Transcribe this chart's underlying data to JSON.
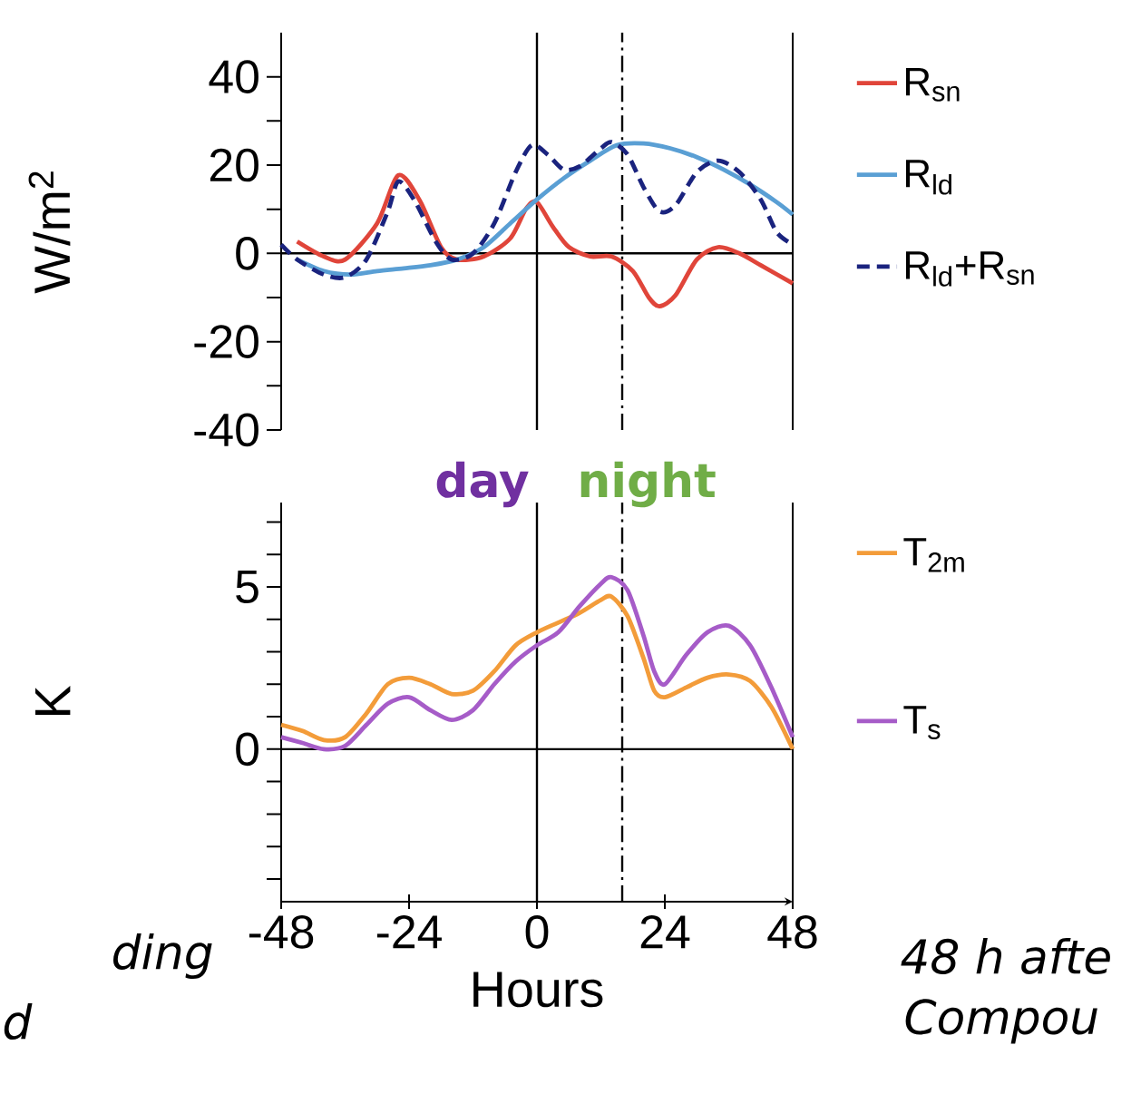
{
  "chart_data": [
    {
      "type": "line",
      "ylabel": "W/m$^{2}$",
      "xlim": [
        -48,
        48
      ],
      "ylim": [
        -40,
        50
      ],
      "yticks": [
        -40,
        {
          "value": -30,
          "label": null
        },
        -20,
        {
          "value": -10,
          "label": null
        },
        0,
        {
          "value": 10,
          "label": null
        },
        20,
        {
          "value": 30,
          "label": null
        },
        40
      ],
      "tick_labels": "y",
      "legend": "right",
      "annotations": [
        "day",
        "night"
      ],
      "ref_lines": [
        {
          "axis": "x",
          "value": 0,
          "color": "#000000",
          "line_style": "solid"
        },
        {
          "axis": "x",
          "value": 16,
          "color": "#000000",
          "line_style": "dashdot"
        },
        {
          "axis": "y",
          "value": 0,
          "color": "#000000",
          "line_style": "solid"
        }
      ],
      "series": [
        {
          "name": "R$_{sn}$",
          "color": "#e0453a",
          "line_style": "solid",
          "x": [
            -45,
            -40,
            -36,
            -30,
            -26,
            -22,
            -18,
            -15,
            -10,
            -5,
            -2,
            0,
            3,
            6,
            10,
            14,
            18,
            21,
            23,
            26,
            30,
            34,
            38,
            42,
            48
          ],
          "values": [
            2.7,
            -0.7,
            -1.4,
            6.8,
            17.7,
            12,
            1.4,
            -1.4,
            -0.7,
            3.4,
            10.2,
            11.6,
            6,
            1.4,
            -0.7,
            -0.7,
            -4,
            -10,
            -12,
            -9.5,
            -1.4,
            1.4,
            0,
            -2.7,
            -6.8
          ]
        },
        {
          "name": "R$_{ld}$",
          "color": "#5a9fd4",
          "line_style": "solid",
          "x": [
            -45,
            -40,
            -35,
            -30,
            -25,
            -20,
            -15,
            -10,
            -5,
            0,
            5,
            10,
            15,
            20,
            25,
            30,
            35,
            40,
            45,
            48
          ],
          "values": [
            -1.4,
            -4,
            -4.8,
            -4,
            -3.4,
            -2.7,
            -1.4,
            1.4,
            6.8,
            12.2,
            17,
            21,
            24.5,
            24.9,
            23.8,
            21.8,
            19,
            15.6,
            11.6,
            8.8
          ]
        },
        {
          "name": "R$_{ld}$+R$_{sn}$",
          "color": "#1a237e",
          "line_style": "dashed",
          "x": [
            -48,
            -45,
            -40,
            -36,
            -32,
            -28,
            -26,
            -23,
            -19,
            -16,
            -12,
            -8,
            -4,
            -1,
            2,
            5,
            8,
            12,
            14,
            17,
            20,
            23,
            26,
            30,
            34,
            38,
            42,
            45,
            48
          ],
          "values": [
            2,
            -1.4,
            -4.8,
            -5.4,
            -1.4,
            9.5,
            16.3,
            12,
            2.7,
            -1.4,
            0,
            6.8,
            18.4,
            24.5,
            22.4,
            19,
            19.7,
            23.8,
            25.2,
            22.4,
            15,
            9.5,
            10.9,
            18.4,
            21,
            18.4,
            12.2,
            4.8,
            2
          ]
        }
      ]
    },
    {
      "type": "line",
      "xlabel": "Hours",
      "ylabel": "K",
      "xlim": [
        -48,
        48
      ],
      "ylim": [
        -4.7,
        7.6
      ],
      "xticks": [
        -48,
        -24,
        0,
        24,
        48
      ],
      "yticks": [
        {
          "value": -4,
          "label": null
        },
        {
          "value": -3,
          "label": null
        },
        {
          "value": -2,
          "label": null
        },
        {
          "value": -1,
          "label": null
        },
        0,
        {
          "value": 1,
          "label": null
        },
        {
          "value": 2,
          "label": null
        },
        {
          "value": 3,
          "label": null
        },
        {
          "value": 4,
          "label": null
        },
        5,
        {
          "value": 6,
          "label": null
        },
        {
          "value": 7,
          "label": null
        }
      ],
      "legend": "right",
      "annotations": [
        "ding",
        "d",
        "48 h afte",
        "Compou"
      ],
      "ref_lines": [
        {
          "axis": "x",
          "value": 0,
          "color": "#000000",
          "line_style": "solid"
        },
        {
          "axis": "x",
          "value": 16,
          "color": "#000000",
          "line_style": "dashdot"
        },
        {
          "axis": "y",
          "value": 0,
          "color": "#000000",
          "line_style": "solid"
        }
      ],
      "series": [
        {
          "name": "T$_{2m}$",
          "color": "#f39c3a",
          "line_style": "solid",
          "x": [
            -48,
            -44,
            -40,
            -36,
            -32,
            -28,
            -24,
            -20,
            -16,
            -12,
            -8,
            -4,
            0,
            4,
            8,
            12,
            14,
            17,
            20,
            22,
            24,
            28,
            32,
            36,
            40,
            44,
            48
          ],
          "values": [
            0.75,
            0.56,
            0.28,
            0.37,
            1.1,
            2,
            2.2,
            2,
            1.7,
            1.8,
            2.4,
            3.2,
            3.6,
            3.9,
            4.2,
            4.6,
            4.7,
            4.1,
            2.8,
            1.8,
            1.6,
            1.9,
            2.2,
            2.3,
            2.1,
            1.3,
            0
          ]
        },
        {
          "name": "T$_{s}$",
          "color": "#a65cc8",
          "line_style": "solid",
          "x": [
            -48,
            -44,
            -40,
            -36,
            -32,
            -28,
            -24,
            -20,
            -16,
            -12,
            -8,
            -4,
            0,
            4,
            8,
            12,
            14,
            17,
            20,
            22,
            24,
            28,
            32,
            36,
            40,
            44,
            48
          ],
          "values": [
            0.37,
            0.19,
            0,
            0.1,
            0.75,
            1.4,
            1.6,
            1.2,
            0.9,
            1.2,
            2,
            2.7,
            3.2,
            3.6,
            4.4,
            5.1,
            5.3,
            4.9,
            3.5,
            2.4,
            2,
            2.9,
            3.6,
            3.8,
            3.2,
            1.9,
            0.37
          ]
        }
      ]
    }
  ]
}
